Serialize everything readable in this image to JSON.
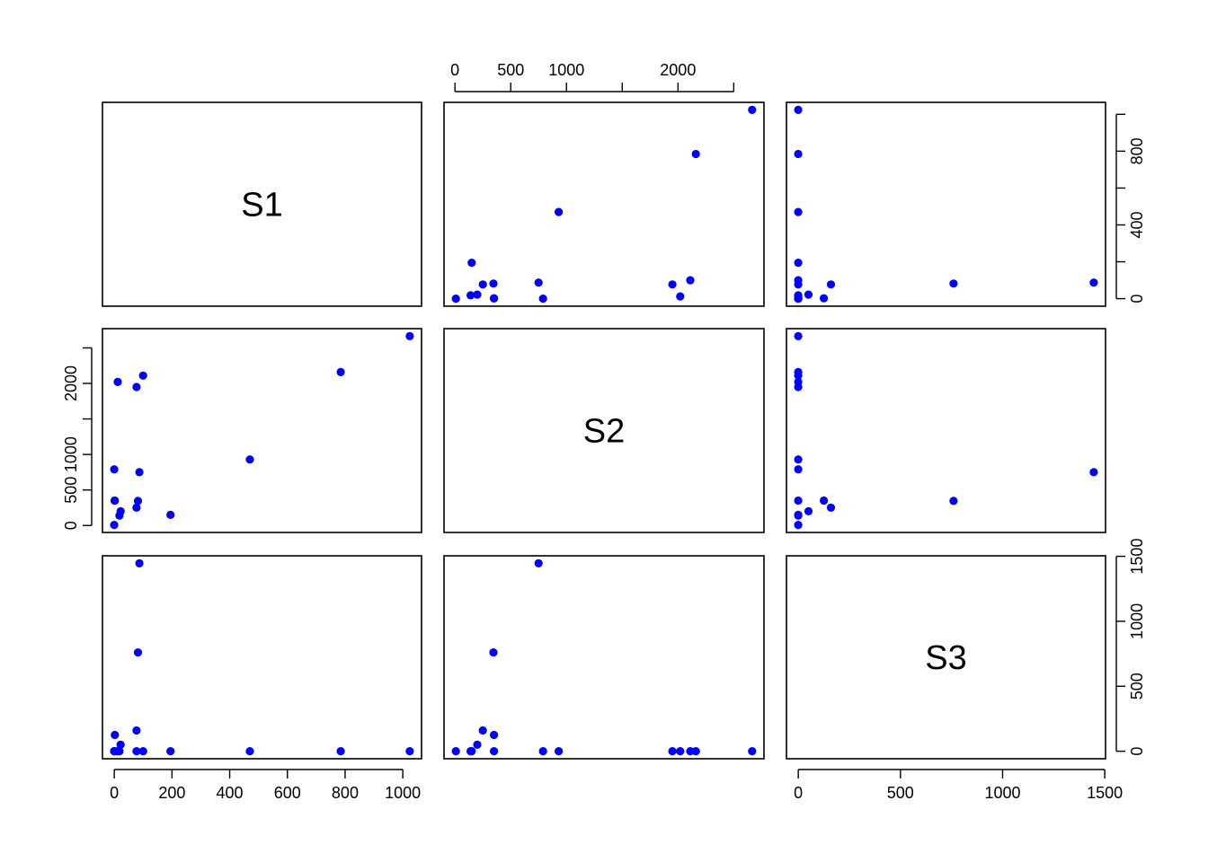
{
  "chart_data": {
    "type": "scatter",
    "subtype": "pairs-matrix",
    "point_color": "#0000ff",
    "variables": [
      "S1",
      "S2",
      "S3"
    ],
    "ranges": {
      "S1": [
        0,
        1024
      ],
      "S2": [
        8,
        2665
      ],
      "S3": [
        0,
        1446
      ]
    },
    "ticks": {
      "S1": [
        0,
        200,
        400,
        600,
        800,
        1000
      ],
      "S2": [
        0,
        500,
        1000,
        1500,
        2000,
        2500
      ],
      "S3": [
        0,
        500,
        1000,
        1500
      ]
    },
    "tick_labels": {
      "S1": [
        "0",
        "200",
        "400",
        "600",
        "800",
        "1000"
      ],
      "S1_right": [
        "0",
        "",
        "400",
        "",
        "800",
        ""
      ],
      "S2": [
        "0",
        "500",
        "1000",
        "",
        "2000",
        ""
      ],
      "S3": [
        "0",
        "500",
        "1000",
        "1500"
      ]
    },
    "points": [
      {
        "S1": 0,
        "S2": 8,
        "S3": 0
      },
      {
        "S1": 1,
        "S2": 350,
        "S3": 0
      },
      {
        "S1": 0,
        "S2": 790,
        "S3": 0
      },
      {
        "S1": 18,
        "S2": 140,
        "S3": 0
      },
      {
        "S1": 22,
        "S2": 200,
        "S3": 50
      },
      {
        "S1": 12,
        "S2": 2020,
        "S3": 0
      },
      {
        "S1": 77,
        "S2": 1950,
        "S3": 0
      },
      {
        "S1": 100,
        "S2": 2110,
        "S3": 0
      },
      {
        "S1": 195,
        "S2": 150,
        "S3": 0
      },
      {
        "S1": 470,
        "S2": 930,
        "S3": 0
      },
      {
        "S1": 785,
        "S2": 2160,
        "S3": 0
      },
      {
        "S1": 1024,
        "S2": 2665,
        "S3": 0
      },
      {
        "S1": 87,
        "S2": 750,
        "S3": 1446
      },
      {
        "S1": 82,
        "S2": 345,
        "S3": 760
      },
      {
        "S1": 77,
        "S2": 250,
        "S3": 160
      },
      {
        "S1": 2,
        "S2": 350,
        "S3": 125
      }
    ]
  }
}
